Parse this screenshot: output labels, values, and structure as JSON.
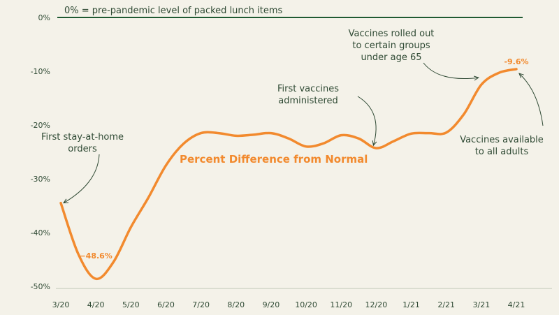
{
  "chart_data": {
    "type": "line",
    "title": "",
    "xlabel": "",
    "ylabel": "",
    "x": [
      "3/20",
      "4/20",
      "5/20",
      "6/20",
      "7/20",
      "8/20",
      "9/20",
      "10/20",
      "11/20",
      "12/20",
      "1/21",
      "2/21",
      "3/21",
      "4/21"
    ],
    "ylim": [
      -50,
      0
    ],
    "y_ticks": [
      0,
      -10,
      -20,
      -30,
      -40,
      -50
    ],
    "y_tick_labels": [
      "0%",
      "-10%",
      "-20%",
      "-30%",
      "-40%",
      "-50%"
    ],
    "series": [
      {
        "name": "Percent Difference from Normal",
        "points": [
          {
            "x": 0.0,
            "y": -34.5
          },
          {
            "x": 0.5,
            "y": -44.0
          },
          {
            "x": 1.0,
            "y": -48.6
          },
          {
            "x": 1.5,
            "y": -45.5
          },
          {
            "x": 2.0,
            "y": -39.0
          },
          {
            "x": 2.5,
            "y": -33.5
          },
          {
            "x": 3.0,
            "y": -27.5
          },
          {
            "x": 3.5,
            "y": -23.5
          },
          {
            "x": 4.0,
            "y": -21.5
          },
          {
            "x": 4.5,
            "y": -21.5
          },
          {
            "x": 5.0,
            "y": -22.0
          },
          {
            "x": 5.5,
            "y": -21.8
          },
          {
            "x": 6.0,
            "y": -21.5
          },
          {
            "x": 6.5,
            "y": -22.5
          },
          {
            "x": 7.0,
            "y": -24.0
          },
          {
            "x": 7.5,
            "y": -23.4
          },
          {
            "x": 8.0,
            "y": -21.9
          },
          {
            "x": 8.5,
            "y": -22.5
          },
          {
            "x": 9.0,
            "y": -24.3
          },
          {
            "x": 9.5,
            "y": -23.0
          },
          {
            "x": 10.0,
            "y": -21.6
          },
          {
            "x": 10.5,
            "y": -21.5
          },
          {
            "x": 11.0,
            "y": -21.4
          },
          {
            "x": 11.5,
            "y": -18.0
          },
          {
            "x": 12.0,
            "y": -12.5
          },
          {
            "x": 12.5,
            "y": -10.3
          },
          {
            "x": 13.0,
            "y": -9.6
          }
        ]
      }
    ],
    "series_label": "Percent Difference from Normal",
    "zero_line_note": "0% = pre-pandemic level of packed lunch items",
    "data_labels": [
      {
        "x": 1.0,
        "y": -48.6,
        "text": "−48.6%"
      },
      {
        "x": 13.0,
        "y": -9.6,
        "text": "-9.6%"
      }
    ],
    "annotations": [
      {
        "lines": [
          "First stay-at-home",
          "orders"
        ],
        "x": 0.0,
        "y": -34.5
      },
      {
        "lines": [
          "First vaccines",
          "administered"
        ],
        "x": 9.0,
        "y": -24.3
      },
      {
        "lines": [
          "Vaccines rolled out",
          "to certain groups",
          "under age 65"
        ],
        "x": 12.0,
        "y": -11.2
      },
      {
        "lines": [
          "Vaccines available",
          "to all adults"
        ],
        "x": 13.0,
        "y": -9.9
      }
    ],
    "grid": false,
    "colors": {
      "background": "#f4f2e9",
      "line": "#f28a2e",
      "zero_line": "#1f5a32",
      "axis": "#bfc8b8",
      "text": "#2f4a34"
    }
  }
}
